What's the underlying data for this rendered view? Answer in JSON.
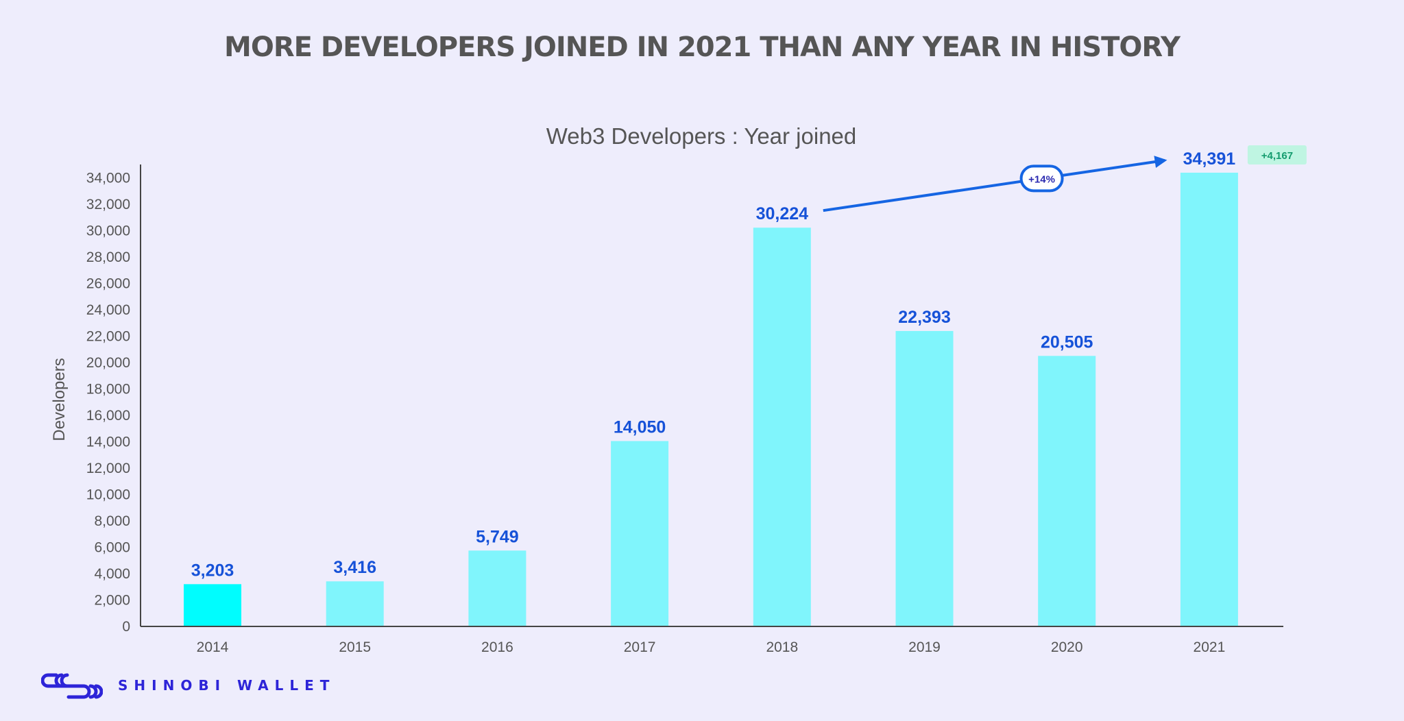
{
  "headline": "MORE DEVELOPERS JOINED IN 2021 THAN ANY YEAR IN HISTORY",
  "brand": {
    "name": "SHINOBI WALLET",
    "logo_icon": "shinobi-logo-icon"
  },
  "colors": {
    "background": "#eeedfc",
    "bar": "#80f5fc",
    "bar_highlight": "#00fdfe",
    "value_label": "#1652d8",
    "axis_text": "#555555",
    "arrow": "#1565e3",
    "badge_bg": "#bff5e2",
    "badge_text": "#149b6e",
    "brand": "#2d24d8"
  },
  "chart_data": {
    "type": "bar",
    "title": "Web3 Developers : Year joined",
    "xlabel": "",
    "ylabel": "Developers",
    "categories": [
      "2014",
      "2015",
      "2016",
      "2017",
      "2018",
      "2019",
      "2020",
      "2021"
    ],
    "values": [
      3203,
      3416,
      5749,
      14050,
      30224,
      22393,
      20505,
      34391
    ],
    "value_labels": [
      "3,203",
      "3,416",
      "5,749",
      "14,050",
      "30,224",
      "22,393",
      "20,505",
      "34,391"
    ],
    "highlight_index": 0,
    "ylim": [
      0,
      35000
    ],
    "yticks": [
      0,
      2000,
      4000,
      6000,
      8000,
      10000,
      12000,
      14000,
      16000,
      18000,
      20000,
      22000,
      24000,
      26000,
      28000,
      30000,
      32000,
      34000
    ],
    "ytick_labels": [
      "0",
      "2,000",
      "4,000",
      "6,000",
      "8,000",
      "10,000",
      "12,000",
      "14,000",
      "16,000",
      "18,000",
      "20,000",
      "22,000",
      "24,000",
      "26,000",
      "28,000",
      "30,000",
      "32,000",
      "34,000"
    ],
    "grid": false,
    "annotations": [
      {
        "type": "arrow",
        "from": "2018",
        "to": "2021",
        "label": "+14%"
      },
      {
        "type": "badge",
        "at": "2021",
        "label": "+4,167"
      }
    ]
  }
}
